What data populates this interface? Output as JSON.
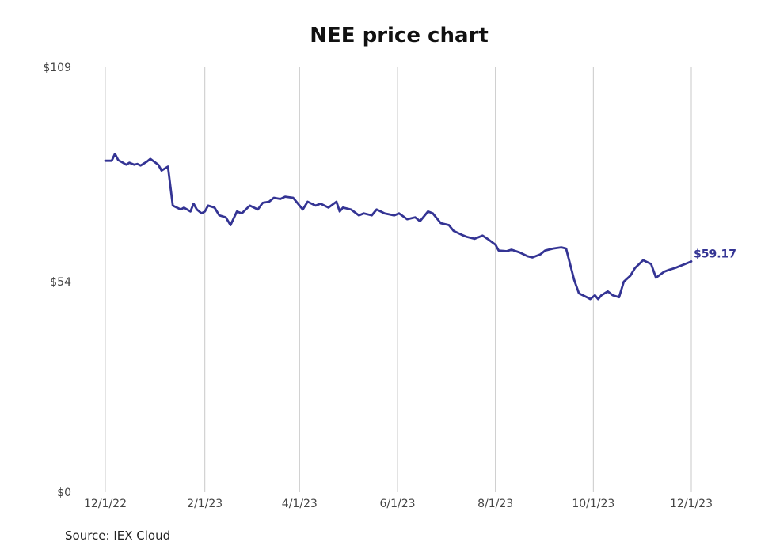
{
  "chart_data": {
    "type": "line",
    "title": "NEE price chart",
    "source": "Source: IEX Cloud",
    "xlabel": "",
    "ylabel": "",
    "ylim": [
      0,
      109
    ],
    "y_ticks": [
      {
        "value": 0,
        "label": "$0"
      },
      {
        "value": 54,
        "label": "$54"
      },
      {
        "value": 109,
        "label": "$109"
      }
    ],
    "x_ticks": [
      {
        "date": "2022-12-01",
        "label": "12/1/22"
      },
      {
        "date": "2023-02-01",
        "label": "2/1/23"
      },
      {
        "date": "2023-04-01",
        "label": "4/1/23"
      },
      {
        "date": "2023-06-01",
        "label": "6/1/23"
      },
      {
        "date": "2023-08-01",
        "label": "8/1/23"
      },
      {
        "date": "2023-10-01",
        "label": "10/1/23"
      },
      {
        "date": "2023-12-01",
        "label": "12/1/23"
      }
    ],
    "x_range": [
      "2022-12-01",
      "2023-12-01"
    ],
    "grid": {
      "vertical": true,
      "horizontal": false
    },
    "line_color": "#343494",
    "end_label": "$59.17",
    "series": [
      {
        "x": [
          "2022-12-01",
          "2022-12-05",
          "2022-12-07",
          "2022-12-09",
          "2022-12-12",
          "2022-12-14",
          "2022-12-16",
          "2022-12-19",
          "2022-12-21",
          "2022-12-23",
          "2022-12-27",
          "2022-12-29",
          "2023-01-03",
          "2023-01-05",
          "2023-01-09",
          "2023-01-12",
          "2023-01-17",
          "2023-01-19",
          "2023-01-23",
          "2023-01-25",
          "2023-01-27",
          "2023-01-30",
          "2023-02-01",
          "2023-02-03",
          "2023-02-07",
          "2023-02-10",
          "2023-02-14",
          "2023-02-17",
          "2023-02-21",
          "2023-02-24",
          "2023-03-01",
          "2023-03-06",
          "2023-03-09",
          "2023-03-13",
          "2023-03-16",
          "2023-03-20",
          "2023-03-23",
          "2023-03-28",
          "2023-04-03",
          "2023-04-06",
          "2023-04-11",
          "2023-04-14",
          "2023-04-19",
          "2023-04-24",
          "2023-04-26",
          "2023-04-28",
          "2023-05-03",
          "2023-05-08",
          "2023-05-11",
          "2023-05-16",
          "2023-05-19",
          "2023-05-24",
          "2023-05-30",
          "2023-06-02",
          "2023-06-07",
          "2023-06-12",
          "2023-06-15",
          "2023-06-20",
          "2023-06-23",
          "2023-06-28",
          "2023-07-03",
          "2023-07-06",
          "2023-07-11",
          "2023-07-14",
          "2023-07-19",
          "2023-07-24",
          "2023-07-27",
          "2023-08-01",
          "2023-08-03",
          "2023-08-08",
          "2023-08-11",
          "2023-08-16",
          "2023-08-21",
          "2023-08-24",
          "2023-08-29",
          "2023-09-01",
          "2023-09-06",
          "2023-09-11",
          "2023-09-14",
          "2023-09-19",
          "2023-09-22",
          "2023-09-27",
          "2023-09-29",
          "2023-10-02",
          "2023-10-04",
          "2023-10-06",
          "2023-10-10",
          "2023-10-13",
          "2023-10-17",
          "2023-10-20",
          "2023-10-24",
          "2023-10-27",
          "2023-11-01",
          "2023-11-06",
          "2023-11-09",
          "2023-11-14",
          "2023-11-17",
          "2023-11-21",
          "2023-11-27",
          "2023-12-01"
        ],
        "y": [
          85.0,
          85.0,
          86.8,
          85.2,
          84.5,
          84.0,
          84.5,
          84.0,
          84.2,
          83.8,
          84.8,
          85.5,
          84.0,
          82.5,
          83.5,
          73.5,
          72.5,
          73.0,
          72.0,
          74.0,
          72.5,
          71.5,
          72.0,
          73.5,
          73.0,
          71.0,
          70.5,
          68.5,
          72.0,
          71.5,
          73.5,
          72.5,
          74.2,
          74.5,
          75.5,
          75.2,
          75.8,
          75.5,
          72.5,
          74.5,
          73.5,
          74.0,
          73.0,
          74.5,
          72.0,
          73.0,
          72.5,
          71.0,
          71.5,
          71.0,
          72.5,
          71.5,
          71.0,
          71.5,
          70.0,
          70.5,
          69.5,
          72.0,
          71.5,
          69.0,
          68.5,
          67.0,
          66.0,
          65.5,
          65.0,
          65.8,
          65.0,
          63.5,
          62.0,
          61.8,
          62.2,
          61.5,
          60.5,
          60.2,
          61.0,
          62.0,
          62.5,
          62.8,
          62.5,
          54.5,
          51.0,
          50.0,
          49.5,
          50.5,
          49.5,
          50.5,
          51.5,
          50.5,
          50.0,
          54.0,
          55.5,
          57.5,
          59.5,
          58.5,
          55.0,
          56.5,
          57.0,
          57.5,
          58.5,
          59.17
        ]
      }
    ]
  }
}
